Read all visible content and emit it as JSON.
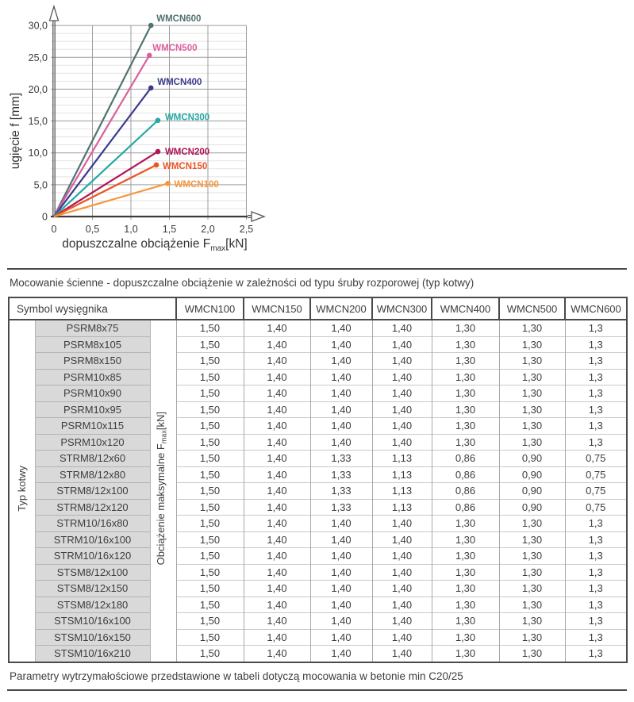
{
  "chart_data": {
    "type": "line",
    "title": "",
    "ylabel": "ugięcie f [mm]",
    "xlabel_parts": {
      "pre": "dopuszczalne obciążenie F",
      "sub": "max",
      "post": "[kN]"
    },
    "xlim": [
      0,
      2.5
    ],
    "ylim": [
      0,
      30
    ],
    "grid": "on",
    "minor_y_step": 1.25,
    "x_ticks": [
      {
        "v": 0,
        "label": "0"
      },
      {
        "v": 0.5,
        "label": "0,5"
      },
      {
        "v": 1.0,
        "label": "1,0"
      },
      {
        "v": 1.5,
        "label": "1,5"
      },
      {
        "v": 2.0,
        "label": "2,0"
      },
      {
        "v": 2.5,
        "label": "2,5"
      }
    ],
    "y_ticks": [
      {
        "v": 0,
        "label": "0"
      },
      {
        "v": 5,
        "label": "5,0"
      },
      {
        "v": 10,
        "label": "10,0"
      },
      {
        "v": 15,
        "label": "15,0"
      },
      {
        "v": 20,
        "label": "20,0"
      },
      {
        "v": 25,
        "label": "25,0"
      },
      {
        "v": 30,
        "label": "30,0"
      }
    ],
    "series": [
      {
        "name": "WMCN600",
        "color": "#507271",
        "points": [
          [
            0,
            0
          ],
          [
            1.26,
            30.0
          ]
        ],
        "label_offset": [
          7,
          -5
        ]
      },
      {
        "name": "WMCN500",
        "color": "#dc5f9d",
        "points": [
          [
            0,
            0
          ],
          [
            1.24,
            25.3
          ]
        ],
        "label_offset": [
          4,
          -6
        ]
      },
      {
        "name": "WMCN400",
        "color": "#3a3a8d",
        "points": [
          [
            0,
            0
          ],
          [
            1.26,
            20.2
          ]
        ],
        "label_offset": [
          8,
          -4
        ]
      },
      {
        "name": "WMCN300",
        "color": "#21a8a1",
        "points": [
          [
            0,
            0
          ],
          [
            1.35,
            15.1
          ]
        ],
        "label_offset": [
          9,
          0
        ]
      },
      {
        "name": "WMCN200",
        "color": "#b11556",
        "points": [
          [
            0,
            0
          ],
          [
            1.35,
            10.2
          ]
        ],
        "label_offset": [
          9,
          4
        ]
      },
      {
        "name": "WMCN150",
        "color": "#eb5420",
        "points": [
          [
            0,
            0
          ],
          [
            1.33,
            8.1
          ]
        ],
        "label_offset": [
          8,
          5
        ]
      },
      {
        "name": "WMCN100",
        "color": "#f6953a",
        "points": [
          [
            0,
            0
          ],
          [
            1.48,
            5.2
          ]
        ],
        "label_offset": [
          8,
          5
        ]
      }
    ]
  },
  "table": {
    "caption": "Mocowanie ścienne - dopuszczalne obciążenie w zależności od typu śruby rozporowej (typ kotwy)",
    "row_header": "Symbol wysięgnika",
    "col_headers": [
      "WMCN100",
      "WMCN150",
      "WMCN200",
      "WMCN300",
      "WMCN400",
      "WMCN500",
      "WMCN600"
    ],
    "left_vertical_label": "Typ kotwy",
    "value_vertical_label_parts": {
      "pre": "Obciążenie maksymalne F",
      "sub": "max",
      "post": "[kN]"
    },
    "rows": [
      {
        "name": "PSRM8x75",
        "values": [
          "1,50",
          "1,40",
          "1,40",
          "1,40",
          "1,30",
          "1,30",
          "1,3"
        ]
      },
      {
        "name": "PSRM8x105",
        "values": [
          "1,50",
          "1,40",
          "1,40",
          "1,40",
          "1,30",
          "1,30",
          "1,3"
        ]
      },
      {
        "name": "PSRM8x150",
        "values": [
          "1,50",
          "1,40",
          "1,40",
          "1,40",
          "1,30",
          "1,30",
          "1,3"
        ]
      },
      {
        "name": "PSRM10x85",
        "values": [
          "1,50",
          "1,40",
          "1,40",
          "1,40",
          "1,30",
          "1,30",
          "1,3"
        ]
      },
      {
        "name": "PSRM10x90",
        "values": [
          "1,50",
          "1,40",
          "1,40",
          "1,40",
          "1,30",
          "1,30",
          "1,3"
        ]
      },
      {
        "name": "PSRM10x95",
        "values": [
          "1,50",
          "1,40",
          "1,40",
          "1,40",
          "1,30",
          "1,30",
          "1,3"
        ]
      },
      {
        "name": "PSRM10x115",
        "values": [
          "1,50",
          "1,40",
          "1,40",
          "1,40",
          "1,30",
          "1,30",
          "1,3"
        ]
      },
      {
        "name": "PSRM10x120",
        "values": [
          "1,50",
          "1,40",
          "1,40",
          "1,40",
          "1,30",
          "1,30",
          "1,3"
        ]
      },
      {
        "name": "STRM8/12x60",
        "values": [
          "1,50",
          "1,40",
          "1,33",
          "1,13",
          "0,86",
          "0,90",
          "0,75"
        ]
      },
      {
        "name": "STRM8/12x80",
        "values": [
          "1,50",
          "1,40",
          "1,33",
          "1,13",
          "0,86",
          "0,90",
          "0,75"
        ]
      },
      {
        "name": "STRM8/12x100",
        "values": [
          "1,50",
          "1,40",
          "1,33",
          "1,13",
          "0,86",
          "0,90",
          "0,75"
        ]
      },
      {
        "name": "STRM8/12x120",
        "values": [
          "1,50",
          "1,40",
          "1,33",
          "1,13",
          "0,86",
          "0,90",
          "0,75"
        ]
      },
      {
        "name": "STRM10/16x80",
        "values": [
          "1,50",
          "1,40",
          "1,40",
          "1,40",
          "1,30",
          "1,30",
          "1,3"
        ]
      },
      {
        "name": "STRM10/16x100",
        "values": [
          "1,50",
          "1,40",
          "1,40",
          "1,40",
          "1,30",
          "1,30",
          "1,3"
        ]
      },
      {
        "name": "STRM10/16x120",
        "values": [
          "1,50",
          "1,40",
          "1,40",
          "1,40",
          "1,30",
          "1,30",
          "1,3"
        ]
      },
      {
        "name": "STSM8/12x100",
        "values": [
          "1,50",
          "1,40",
          "1,40",
          "1,40",
          "1,30",
          "1,30",
          "1,3"
        ]
      },
      {
        "name": "STSM8/12x150",
        "values": [
          "1,50",
          "1,40",
          "1,40",
          "1,40",
          "1,30",
          "1,30",
          "1,3"
        ]
      },
      {
        "name": "STSM8/12x180",
        "values": [
          "1,50",
          "1,40",
          "1,40",
          "1,40",
          "1,30",
          "1,30",
          "1,3"
        ]
      },
      {
        "name": "STSM10/16x100",
        "values": [
          "1,50",
          "1,40",
          "1,40",
          "1,40",
          "1,30",
          "1,30",
          "1,3"
        ]
      },
      {
        "name": "STSM10/16x150",
        "values": [
          "1,50",
          "1,40",
          "1,40",
          "1,40",
          "1,30",
          "1,30",
          "1,3"
        ]
      },
      {
        "name": "STSM10/16x210",
        "values": [
          "1,50",
          "1,40",
          "1,40",
          "1,40",
          "1,30",
          "1,30",
          "1,3"
        ]
      }
    ],
    "footnote": "Parametry wytrzymałościowe przedstawione w tabeli dotyczą mocowania w betonie min C20/25"
  },
  "colors": {
    "rule": "#4a4a4a",
    "grid_minor": "#e3e3e3",
    "grid_major": "#9d9d9d",
    "axis": "#5a5a5a",
    "name_cell_bg": "#d9d9d9"
  }
}
